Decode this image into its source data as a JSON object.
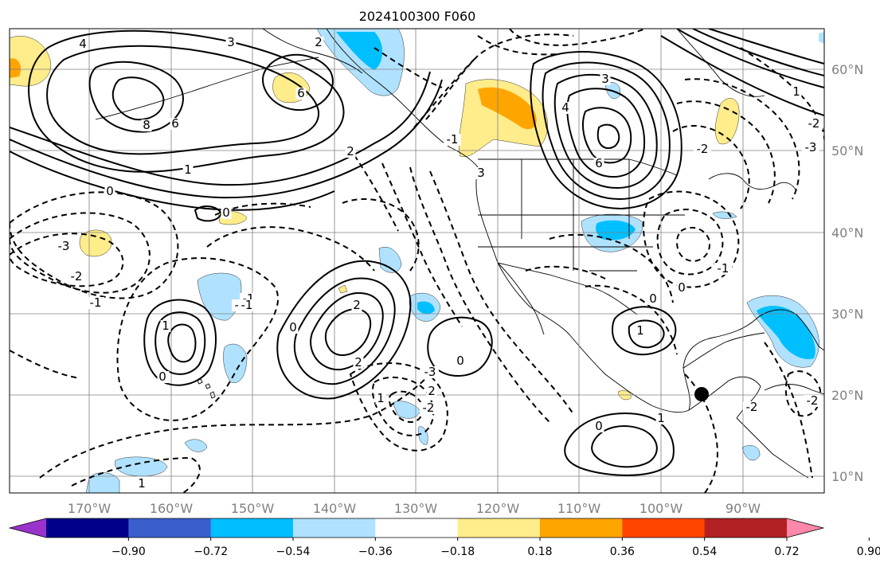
{
  "title": "2024100300 F060",
  "lon_labels": [
    "170°W",
    "160°W",
    "150°W",
    "140°W",
    "130°W",
    "120°W",
    "110°W",
    "100°W",
    "90°W"
  ],
  "lat_labels": [
    "60°N",
    "50°N",
    "40°N",
    "30°N",
    "20°N",
    "10°N"
  ],
  "colorbar": {
    "ticks": [
      "−0.90",
      "−0.72",
      "−0.54",
      "−0.36",
      "−0.18",
      "0.18",
      "0.36",
      "0.54",
      "0.72",
      "0.90"
    ],
    "colors": [
      "#9933cc",
      "#00008b",
      "#3a5fcd",
      "#00bfff",
      "#b0e2ff",
      "#ffffff",
      "#ffec8b",
      "#ffa500",
      "#ff4500",
      "#b22222",
      "#ff88aa"
    ]
  },
  "contour_labels": [
    "4",
    "3",
    "2",
    "8",
    "6",
    "6",
    "1",
    "0",
    "-3",
    "-2",
    "-1",
    "-1",
    "0",
    "2",
    "1",
    "-2",
    "1",
    "0",
    "0",
    "-3",
    "3",
    "4",
    "6",
    "3",
    "2",
    "-1",
    "1",
    "-2",
    "0",
    "-2",
    "0",
    "-3",
    "2",
    "1",
    "2",
    "-1",
    "0",
    "-2",
    "-2",
    "-1",
    "0",
    "1",
    "1",
    "0",
    "-1"
  ]
}
